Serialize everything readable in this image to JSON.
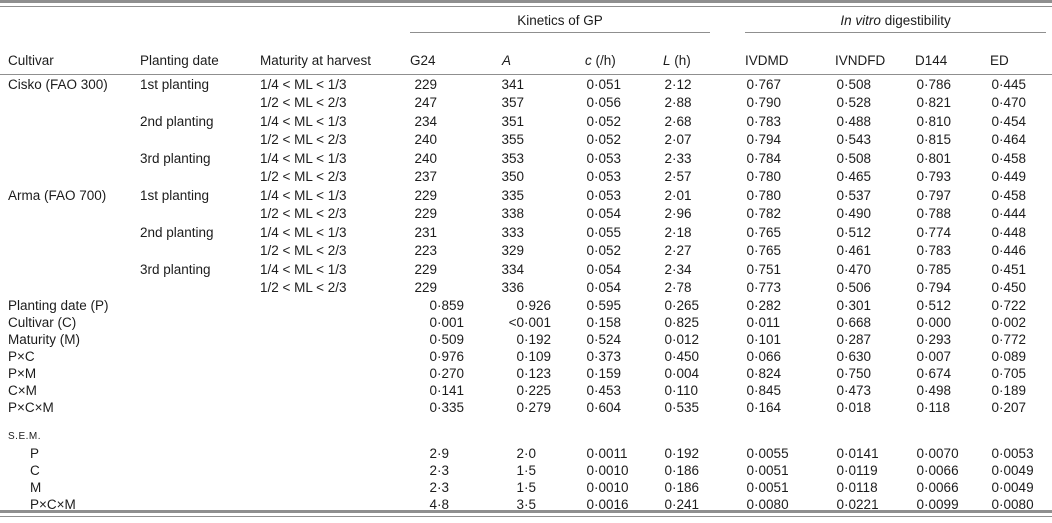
{
  "colors": {
    "rule": "#8f8f8f",
    "text": "#1c1c1c",
    "background": "#ffffff"
  },
  "header": {
    "group_kinetics": {
      "text": "Kinetics of GP"
    },
    "group_invitro": {
      "italic": "In vitro",
      "rest": " digestibility"
    }
  },
  "table": {
    "columns": [
      {
        "key": "cultivar",
        "segments": [
          {
            "t": "Cultivar"
          }
        ]
      },
      {
        "key": "planting-date",
        "segments": [
          {
            "t": "Planting date"
          }
        ]
      },
      {
        "key": "maturity-at-harvest",
        "segments": [
          {
            "t": "Maturity at harvest"
          }
        ]
      },
      {
        "key": "g24",
        "segments": [
          {
            "t": "G24"
          }
        ]
      },
      {
        "key": "a",
        "segments": [
          {
            "t": "A",
            "i": true
          }
        ]
      },
      {
        "key": "c-per-h",
        "segments": [
          {
            "t": "c",
            "i": true
          },
          {
            "t": " (/h)"
          }
        ]
      },
      {
        "key": "l-h",
        "segments": [
          {
            "t": "L",
            "i": true
          },
          {
            "t": " (h)"
          }
        ]
      },
      {
        "key": "ivdmd",
        "segments": [
          {
            "t": "IVDMD"
          }
        ]
      },
      {
        "key": "ivndfd",
        "segments": [
          {
            "t": "IVNDFD"
          }
        ]
      },
      {
        "key": "d144",
        "segments": [
          {
            "t": "D144"
          }
        ]
      },
      {
        "key": "ed",
        "segments": [
          {
            "t": "ED"
          }
        ]
      }
    ],
    "rows": [
      {
        "type": "data",
        "cultivar": "Cisko (FAO 300)",
        "planting": "1st planting",
        "maturity": "1/4 < ML < 1/3",
        "values": [
          "229",
          "341",
          "0·051",
          "2·12",
          "0·767",
          "0·508",
          "0·786",
          "0·445"
        ]
      },
      {
        "type": "data",
        "cultivar": "",
        "planting": "",
        "maturity": "1/2 < ML < 2/3",
        "values": [
          "247",
          "357",
          "0·056",
          "2·88",
          "0·790",
          "0·528",
          "0·821",
          "0·470"
        ]
      },
      {
        "type": "data",
        "cultivar": "",
        "planting": "2nd planting",
        "maturity": "1/4 < ML < 1/3",
        "values": [
          "234",
          "351",
          "0·052",
          "2·68",
          "0·783",
          "0·488",
          "0·810",
          "0·454"
        ]
      },
      {
        "type": "data",
        "cultivar": "",
        "planting": "",
        "maturity": "1/2 < ML < 2/3",
        "values": [
          "240",
          "355",
          "0·052",
          "2·07",
          "0·794",
          "0·543",
          "0·815",
          "0·464"
        ]
      },
      {
        "type": "data",
        "cultivar": "",
        "planting": "3rd planting",
        "maturity": "1/4 < ML < 1/3",
        "values": [
          "240",
          "353",
          "0·053",
          "2·33",
          "0·784",
          "0·508",
          "0·801",
          "0·458"
        ]
      },
      {
        "type": "data",
        "cultivar": "",
        "planting": "",
        "maturity": "1/2 < ML < 2/3",
        "values": [
          "237",
          "350",
          "0·053",
          "2·57",
          "0·780",
          "0·465",
          "0·793",
          "0·449"
        ]
      },
      {
        "type": "data",
        "cultivar": "Arma (FAO 700)",
        "planting": "1st planting",
        "maturity": "1/4 < ML < 1/3",
        "values": [
          "229",
          "335",
          "0·053",
          "2·01",
          "0·780",
          "0·537",
          "0·797",
          "0·458"
        ]
      },
      {
        "type": "data",
        "cultivar": "",
        "planting": "",
        "maturity": "1/2 < ML < 2/3",
        "values": [
          "229",
          "338",
          "0·054",
          "2·96",
          "0·782",
          "0·490",
          "0·788",
          "0·444"
        ]
      },
      {
        "type": "data",
        "cultivar": "",
        "planting": "2nd planting",
        "maturity": "1/4 < ML < 1/3",
        "values": [
          "231",
          "333",
          "0·055",
          "2·18",
          "0·765",
          "0·512",
          "0·774",
          "0·448"
        ]
      },
      {
        "type": "data",
        "cultivar": "",
        "planting": "",
        "maturity": "1/2 < ML < 2/3",
        "values": [
          "223",
          "329",
          "0·052",
          "2·27",
          "0·765",
          "0·461",
          "0·783",
          "0·446"
        ]
      },
      {
        "type": "data",
        "cultivar": "",
        "planting": "3rd planting",
        "maturity": "1/4 < ML < 1/3",
        "values": [
          "229",
          "334",
          "0·054",
          "2·34",
          "0·751",
          "0·470",
          "0·785",
          "0·451"
        ]
      },
      {
        "type": "data",
        "cultivar": "",
        "planting": "",
        "maturity": "1/2 < ML < 2/3",
        "values": [
          "229",
          "336",
          "0·054",
          "2·78",
          "0·773",
          "0·506",
          "0·794",
          "0·450"
        ]
      },
      {
        "type": "effect",
        "label": "Planting date (P)",
        "values": [
          "0·859",
          "0·926",
          "0·595",
          "0·265",
          "0·282",
          "0·301",
          "0·512",
          "0·722"
        ]
      },
      {
        "type": "effect",
        "label": "Cultivar (C)",
        "values": [
          "0·001",
          "<0·001",
          "0·158",
          "0·825",
          "0·011",
          "0·668",
          "0·000",
          "0·002"
        ]
      },
      {
        "type": "effect",
        "label": "Maturity (M)",
        "values": [
          "0·509",
          "0·192",
          "0·524",
          "0·012",
          "0·101",
          "0·287",
          "0·293",
          "0·772"
        ]
      },
      {
        "type": "effect",
        "label": "P×C",
        "values": [
          "0·976",
          "0·109",
          "0·373",
          "0·450",
          "0·066",
          "0·630",
          "0·007",
          "0·089"
        ]
      },
      {
        "type": "effect",
        "label": "P×M",
        "values": [
          "0·270",
          "0·123",
          "0·159",
          "0·004",
          "0·824",
          "0·750",
          "0·674",
          "0·705"
        ]
      },
      {
        "type": "effect",
        "label": "C×M",
        "values": [
          "0·141",
          "0·225",
          "0·453",
          "0·110",
          "0·845",
          "0·473",
          "0·498",
          "0·189"
        ]
      },
      {
        "type": "effect",
        "label": "P×C×M",
        "values": [
          "0·335",
          "0·279",
          "0·604",
          "0·535",
          "0·164",
          "0·018",
          "0·118",
          "0·207"
        ]
      },
      {
        "type": "section",
        "label": "s.e.m."
      },
      {
        "type": "effect",
        "indent": true,
        "label": "P",
        "values": [
          "2·9",
          "2·0",
          "0·0011",
          "0·192",
          "0·0055",
          "0·0141",
          "0·0070",
          "0·0053"
        ]
      },
      {
        "type": "effect",
        "indent": true,
        "label": "C",
        "values": [
          "2·3",
          "1·5",
          "0·0010",
          "0·186",
          "0·0051",
          "0·0119",
          "0·0066",
          "0·0049"
        ]
      },
      {
        "type": "effect",
        "indent": true,
        "label": "M",
        "values": [
          "2·3",
          "1·5",
          "0·0010",
          "0·186",
          "0·0051",
          "0·0118",
          "0·0066",
          "0·0049"
        ]
      },
      {
        "type": "effect",
        "indent": true,
        "label": "P×C×M",
        "values": [
          "4·8",
          "3·5",
          "0·0016",
          "0·241",
          "0·0080",
          "0·0221",
          "0·0099",
          "0·0080"
        ]
      }
    ]
  }
}
